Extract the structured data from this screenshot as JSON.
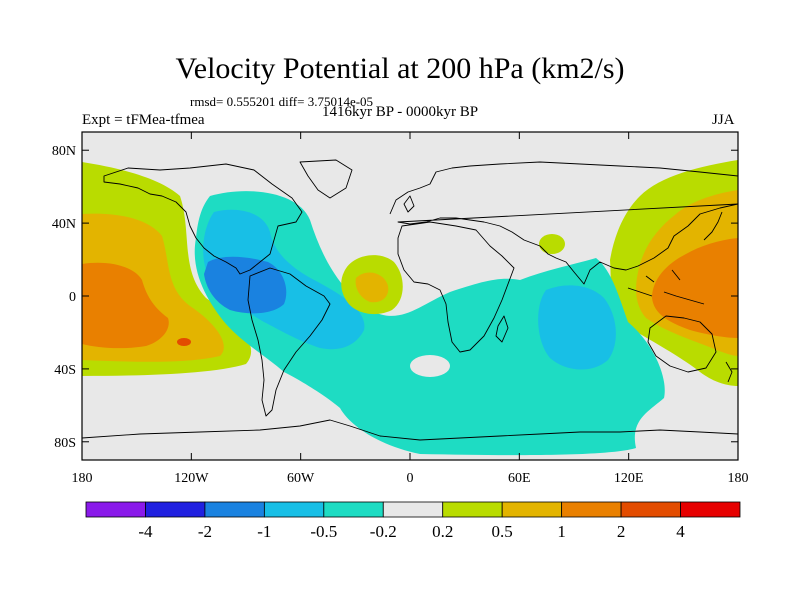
{
  "title": "Velocity Potential at 200 hPa (km2/s)",
  "stats": "rmsd= 0.555201 diff= 3.75014e-05",
  "experiment": "Expt = tFMea-tfmea",
  "period": "1416kyr BP - 0000kyr BP",
  "season": "JJA",
  "map": {
    "projection": "cylindrical equidistant",
    "lon_range": [
      -180,
      180
    ],
    "lat_range": [
      -90,
      90
    ],
    "x_ticks": [
      {
        "lon": -180,
        "label": "180"
      },
      {
        "lon": -120,
        "label": "120W"
      },
      {
        "lon": -60,
        "label": "60W"
      },
      {
        "lon": 0,
        "label": "0"
      },
      {
        "lon": 60,
        "label": "60E"
      },
      {
        "lon": 120,
        "label": "120E"
      },
      {
        "lon": 180,
        "label": "180"
      }
    ],
    "y_ticks": [
      {
        "lat": 80,
        "label": "80N"
      },
      {
        "lat": 40,
        "label": "40N"
      },
      {
        "lat": 0,
        "label": "0"
      },
      {
        "lat": -40,
        "label": "40S"
      },
      {
        "lat": -80,
        "label": "80S"
      }
    ]
  },
  "colorbar": {
    "colors": [
      "#8a1aea",
      "#2020e0",
      "#1a82e0",
      "#18bfe6",
      "#1edcc3",
      "#e8e8e8",
      "#b9dc00",
      "#e3b400",
      "#e98000",
      "#e34c00",
      "#e60000"
    ],
    "labels": [
      "-4",
      "-2",
      "-1",
      "-0.5",
      "-0.2",
      "0.2",
      "0.5",
      "1",
      "2",
      "4"
    ]
  }
}
